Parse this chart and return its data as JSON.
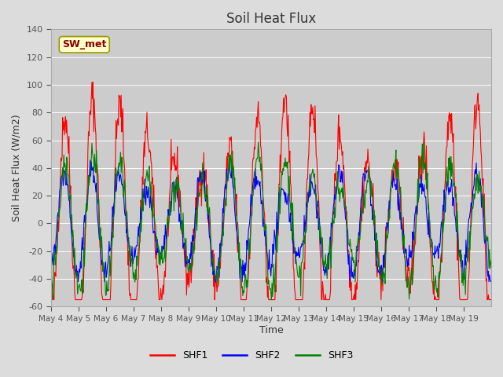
{
  "title": "Soil Heat Flux",
  "ylabel": "Soil Heat Flux (W/m2)",
  "xlabel": "Time",
  "annotation": "SW_met",
  "ylim": [
    -60,
    140
  ],
  "yticks": [
    -60,
    -40,
    -20,
    0,
    20,
    40,
    60,
    80,
    100,
    120,
    140
  ],
  "x_tick_labels": [
    "May 4",
    "May 5",
    "May 6",
    "May 7",
    "May 8",
    "May 9",
    "May 10",
    "May 11",
    "May 12",
    "May 13",
    "May 14",
    "May 15",
    "May 16",
    "May 17",
    "May 18",
    "May 19"
  ],
  "n_days": 16,
  "pts_per_day": 48,
  "colors": [
    "red",
    "blue",
    "green"
  ],
  "series_labels": [
    "SHF1",
    "SHF2",
    "SHF3"
  ],
  "fig_bg": "#dcdcdc",
  "ax_bg": "#cccccc"
}
